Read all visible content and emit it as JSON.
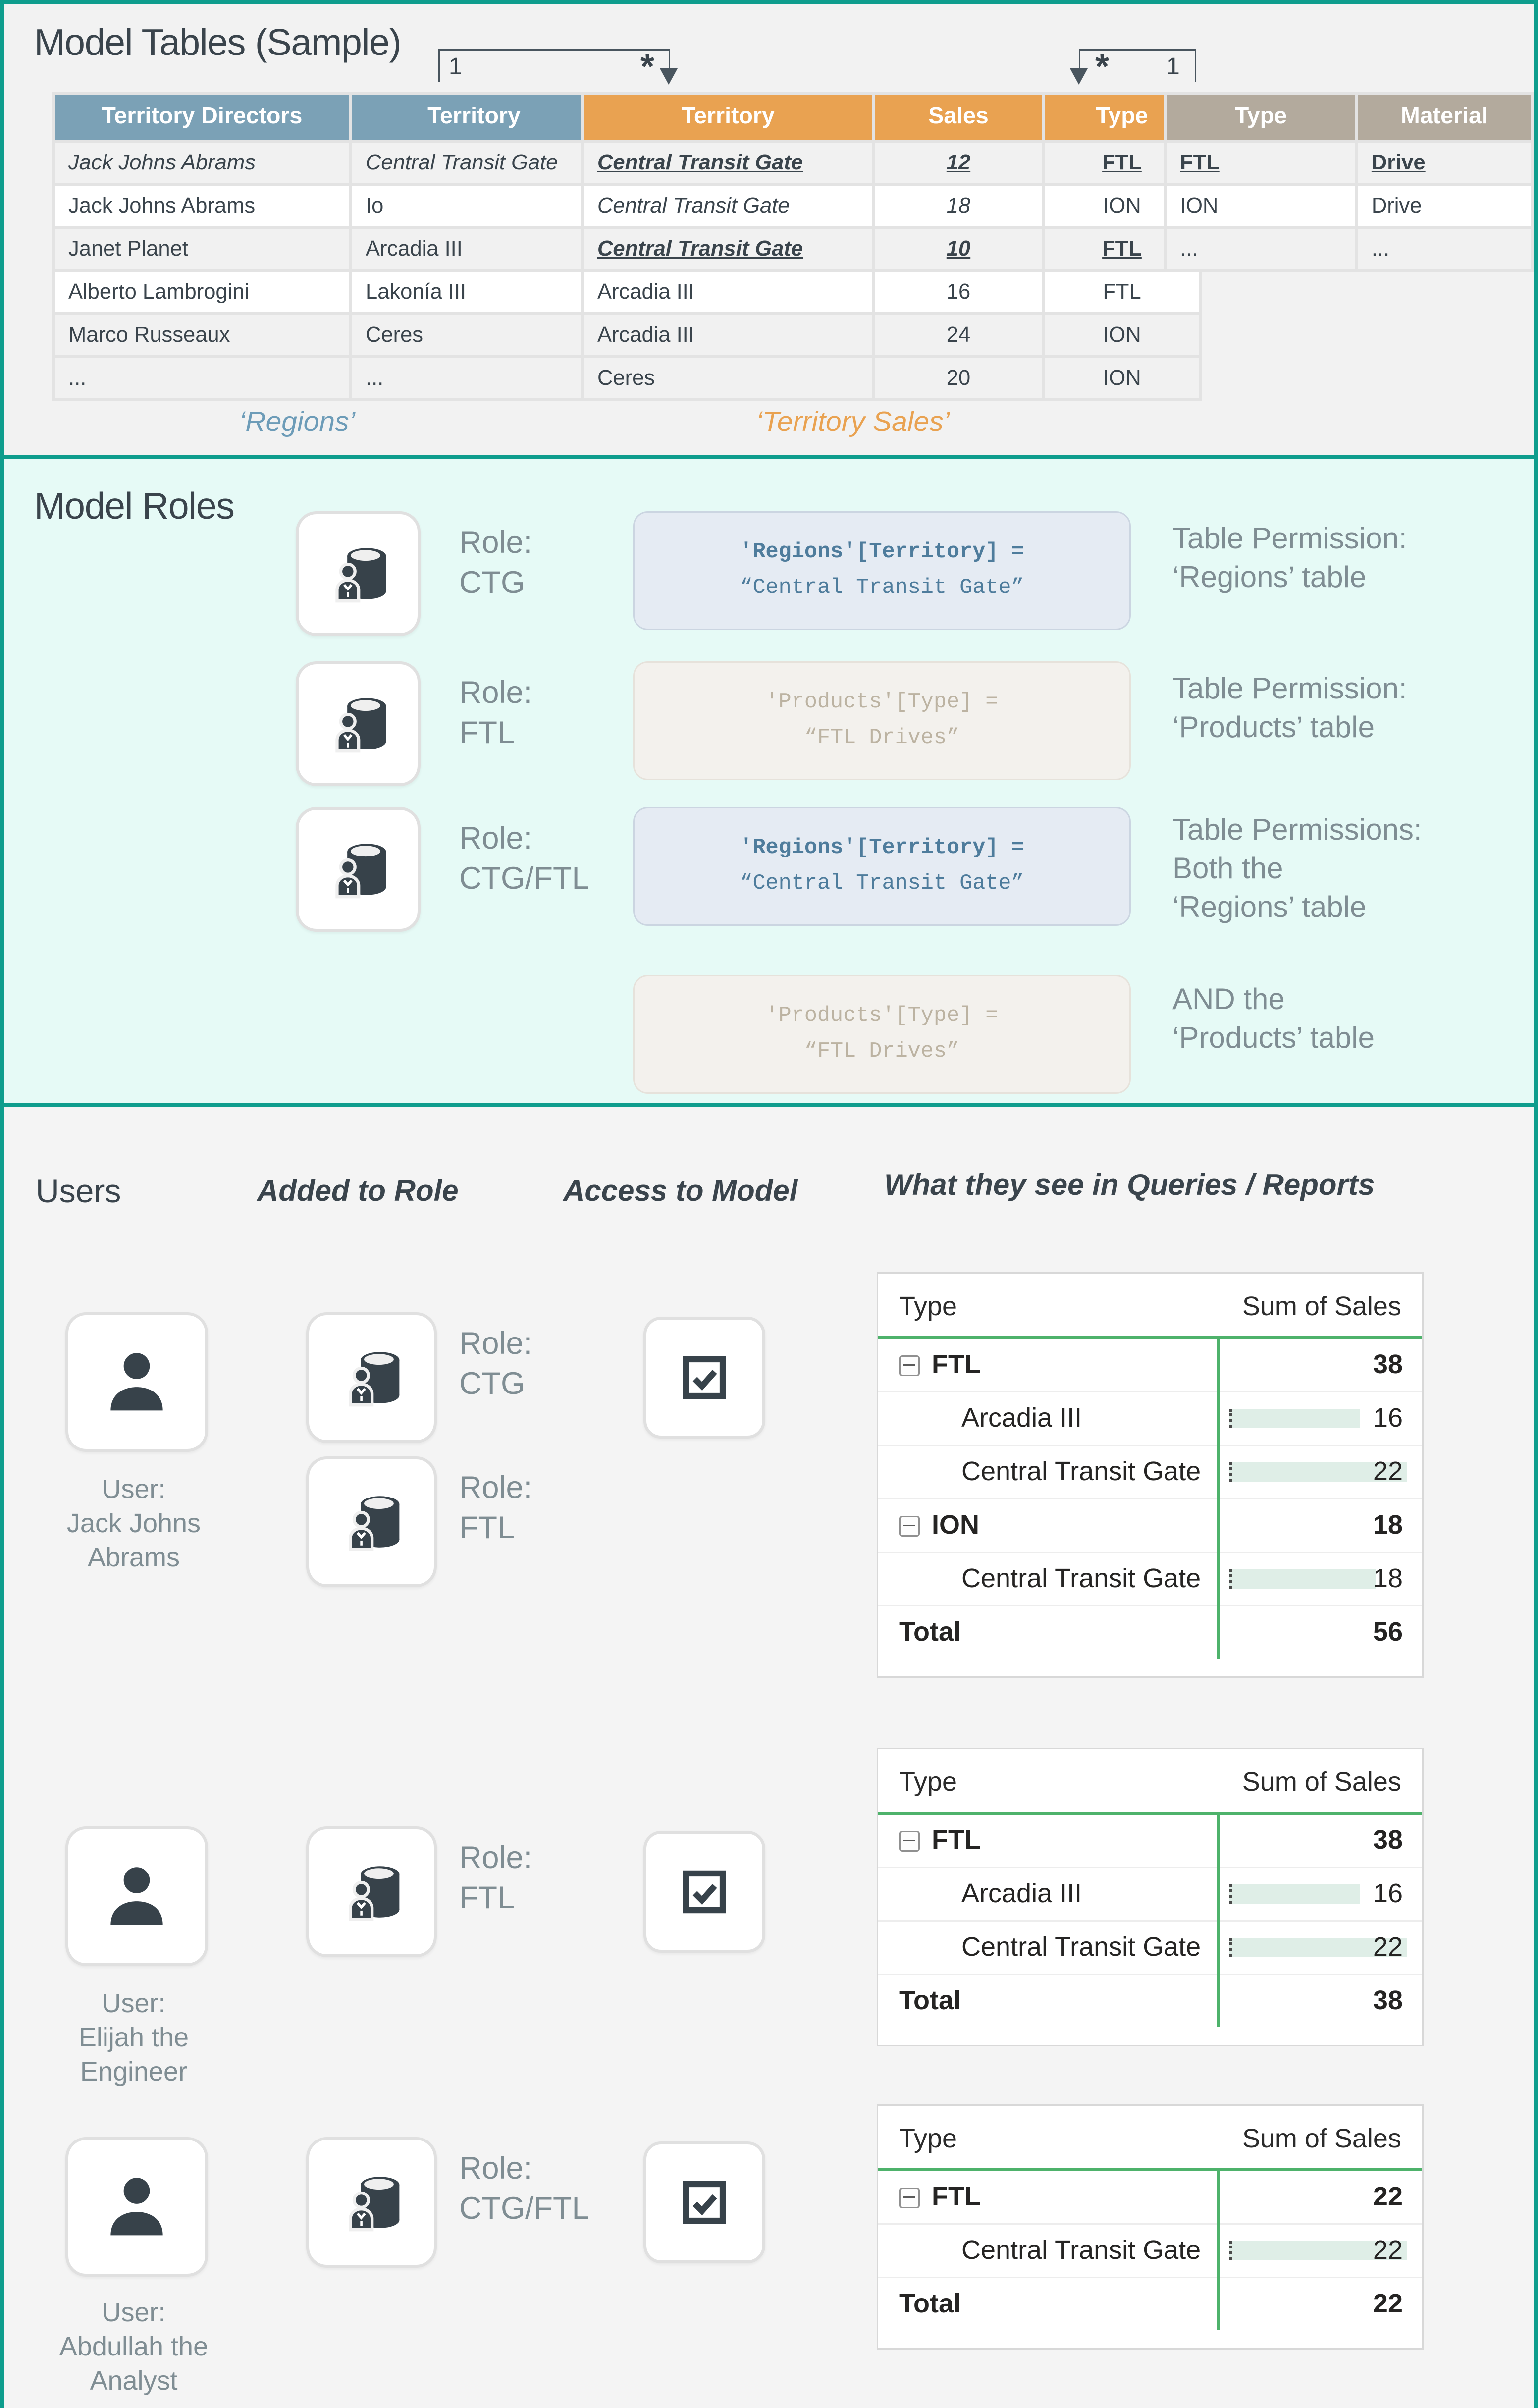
{
  "colors": {
    "teal_border": "#0E9D8D",
    "blue_header": "#7BA1B6",
    "orange_header": "#E9A251",
    "tan_header": "#B3AA9D",
    "blue_text": "#6D9CB8",
    "tan_text": "#A89E8A",
    "code_blue": "#4E7C9C",
    "code_faded": "#BCB3A2",
    "report_green": "#4EB26B",
    "bar_mint": "#DFEEE7",
    "roles_bg": "#E6FAF6"
  },
  "model_tables": {
    "title": "Model Tables (Sample)",
    "conn": {
      "l_one": "1",
      "l_many": "*",
      "r_many": "*",
      "r_one": "1"
    },
    "regions_label": "‘Regions’",
    "sales_label": "‘Territory Sales’",
    "regions": {
      "headers": [
        "Territory Directors",
        "Territory"
      ],
      "rows": [
        {
          "bg": "g",
          "cells": [
            {
              "t": "Jack Johns Abrams",
              "c": "blue-i"
            },
            {
              "t": "Central Transit Gate",
              "c": "blue-i"
            }
          ]
        },
        {
          "bg": "w",
          "cells": [
            {
              "t": "Jack Johns Abrams"
            },
            {
              "t": "Io"
            }
          ]
        },
        {
          "bg": "g",
          "cells": [
            {
              "t": "Janet Planet"
            },
            {
              "t": "Arcadia III"
            }
          ]
        },
        {
          "bg": "w",
          "cells": [
            {
              "t": "Alberto Lambrogini"
            },
            {
              "t": "Lakonía III"
            }
          ]
        },
        {
          "bg": "g",
          "cells": [
            {
              "t": "Marco Russeaux"
            },
            {
              "t": "Ceres"
            }
          ]
        },
        {
          "bg": "g",
          "cells": [
            {
              "t": "..."
            },
            {
              "t": "..."
            }
          ]
        }
      ]
    },
    "sales": {
      "headers": [
        "Territory",
        "Sales",
        "Type"
      ],
      "rows": [
        {
          "bg": "g",
          "cells": [
            {
              "t": "Central Transit Gate",
              "c": "blue-bi-u"
            },
            {
              "t": "12",
              "c": "blue-bi-u"
            },
            {
              "t": "FTL",
              "c": "tan-b-u"
            }
          ]
        },
        {
          "bg": "w",
          "cells": [
            {
              "t": "Central Transit Gate",
              "c": "blue-i"
            },
            {
              "t": "18",
              "c": "blue-i"
            },
            {
              "t": "ION"
            }
          ]
        },
        {
          "bg": "g",
          "cells": [
            {
              "t": "Central Transit Gate",
              "c": "blue-bi-u"
            },
            {
              "t": "10",
              "c": "blue-bi-u"
            },
            {
              "t": "FTL",
              "c": "tan-b-u"
            }
          ]
        },
        {
          "bg": "w",
          "cells": [
            {
              "t": "Arcadia III"
            },
            {
              "t": "16"
            },
            {
              "t": "FTL"
            }
          ]
        },
        {
          "bg": "g",
          "cells": [
            {
              "t": "Arcadia III"
            },
            {
              "t": "24"
            },
            {
              "t": "ION"
            }
          ]
        },
        {
          "bg": "g",
          "cells": [
            {
              "t": "Ceres"
            },
            {
              "t": "20"
            },
            {
              "t": "ION"
            }
          ]
        }
      ]
    },
    "products": {
      "headers": [
        "Type",
        "Material"
      ],
      "rows": [
        {
          "bg": "g",
          "cells": [
            {
              "t": "FTL",
              "c": "tan-b-u"
            },
            {
              "t": "Drive",
              "c": "tan-b-u"
            }
          ]
        },
        {
          "bg": "w",
          "cells": [
            {
              "t": "ION"
            },
            {
              "t": "Drive"
            }
          ]
        },
        {
          "bg": "g",
          "cells": [
            {
              "t": "..."
            },
            {
              "t": "..."
            }
          ]
        }
      ]
    }
  },
  "model_roles": {
    "title": "Model Roles",
    "rows": [
      {
        "role_word": "Role:",
        "role_name": "CTG",
        "code": [
          "'Regions'[Territory] =",
          "“Central Transit Gate”"
        ],
        "permission": [
          "Table Permission:",
          "‘Regions’ table"
        ]
      },
      {
        "role_word": "Role:",
        "role_name": "FTL",
        "code": [
          "'Products'[Type] =",
          "“FTL Drives”"
        ],
        "permission": [
          "Table Permission:",
          "‘Products’ table"
        ]
      },
      {
        "role_word": "Role:",
        "role_name": "CTG/FTL",
        "code": [
          "'Regions'[Territory] =",
          "“Central Transit Gate”"
        ],
        "permission": [
          "Table Permissions:",
          "Both the",
          "‘Regions’ table"
        ]
      },
      {
        "role_word": null,
        "role_name": null,
        "code": [
          "'Products'[Type] =",
          "“FTL Drives”"
        ],
        "permission": [
          "AND the",
          "‘Products’ table"
        ]
      }
    ]
  },
  "users_section": {
    "headers": [
      "Users",
      "Added to Role",
      "Access to Model",
      "What they see in Queries / Reports"
    ],
    "users": [
      {
        "name": [
          "User:",
          "Jack Johns",
          "Abrams"
        ],
        "roles": [
          {
            "word": "Role:",
            "name": "CTG"
          },
          {
            "word": "Role:",
            "name": "FTL"
          }
        ],
        "access": true,
        "report": {
          "col1": "Type",
          "col2": "Sum of Sales",
          "bar_max": 22,
          "rows": [
            {
              "label": "FTL",
              "value": "38",
              "kind": "group"
            },
            {
              "label": "Arcadia III",
              "value": "16",
              "kind": "detail",
              "bar": 16
            },
            {
              "label": "Central Transit Gate",
              "value": "22",
              "kind": "detail",
              "bar": 22
            },
            {
              "label": "ION",
              "value": "18",
              "kind": "group"
            },
            {
              "label": "Central Transit Gate",
              "value": "18",
              "kind": "detail",
              "bar": 18
            },
            {
              "label": "Total",
              "value": "56",
              "kind": "total"
            }
          ]
        }
      },
      {
        "name": [
          "User:",
          "Elijah the",
          "Engineer"
        ],
        "roles": [
          {
            "word": "Role:",
            "name": "FTL"
          }
        ],
        "access": true,
        "report": {
          "col1": "Type",
          "col2": "Sum of Sales",
          "bar_max": 22,
          "rows": [
            {
              "label": "FTL",
              "value": "38",
              "kind": "group"
            },
            {
              "label": "Arcadia III",
              "value": "16",
              "kind": "detail",
              "bar": 16
            },
            {
              "label": "Central Transit Gate",
              "value": "22",
              "kind": "detail",
              "bar": 22
            },
            {
              "label": "Total",
              "value": "38",
              "kind": "total"
            }
          ]
        }
      },
      {
        "name": [
          "User:",
          "Abdullah the",
          "Analyst"
        ],
        "roles": [
          {
            "word": "Role:",
            "name": "CTG/FTL"
          }
        ],
        "access": true,
        "report": {
          "col1": "Type",
          "col2": "Sum of Sales",
          "bar_max": 22,
          "rows": [
            {
              "label": "FTL",
              "value": "22",
              "kind": "group"
            },
            {
              "label": "Central Transit Gate",
              "value": "22",
              "kind": "detail",
              "bar": 22
            },
            {
              "label": "Total",
              "value": "22",
              "kind": "total"
            }
          ]
        }
      }
    ]
  }
}
